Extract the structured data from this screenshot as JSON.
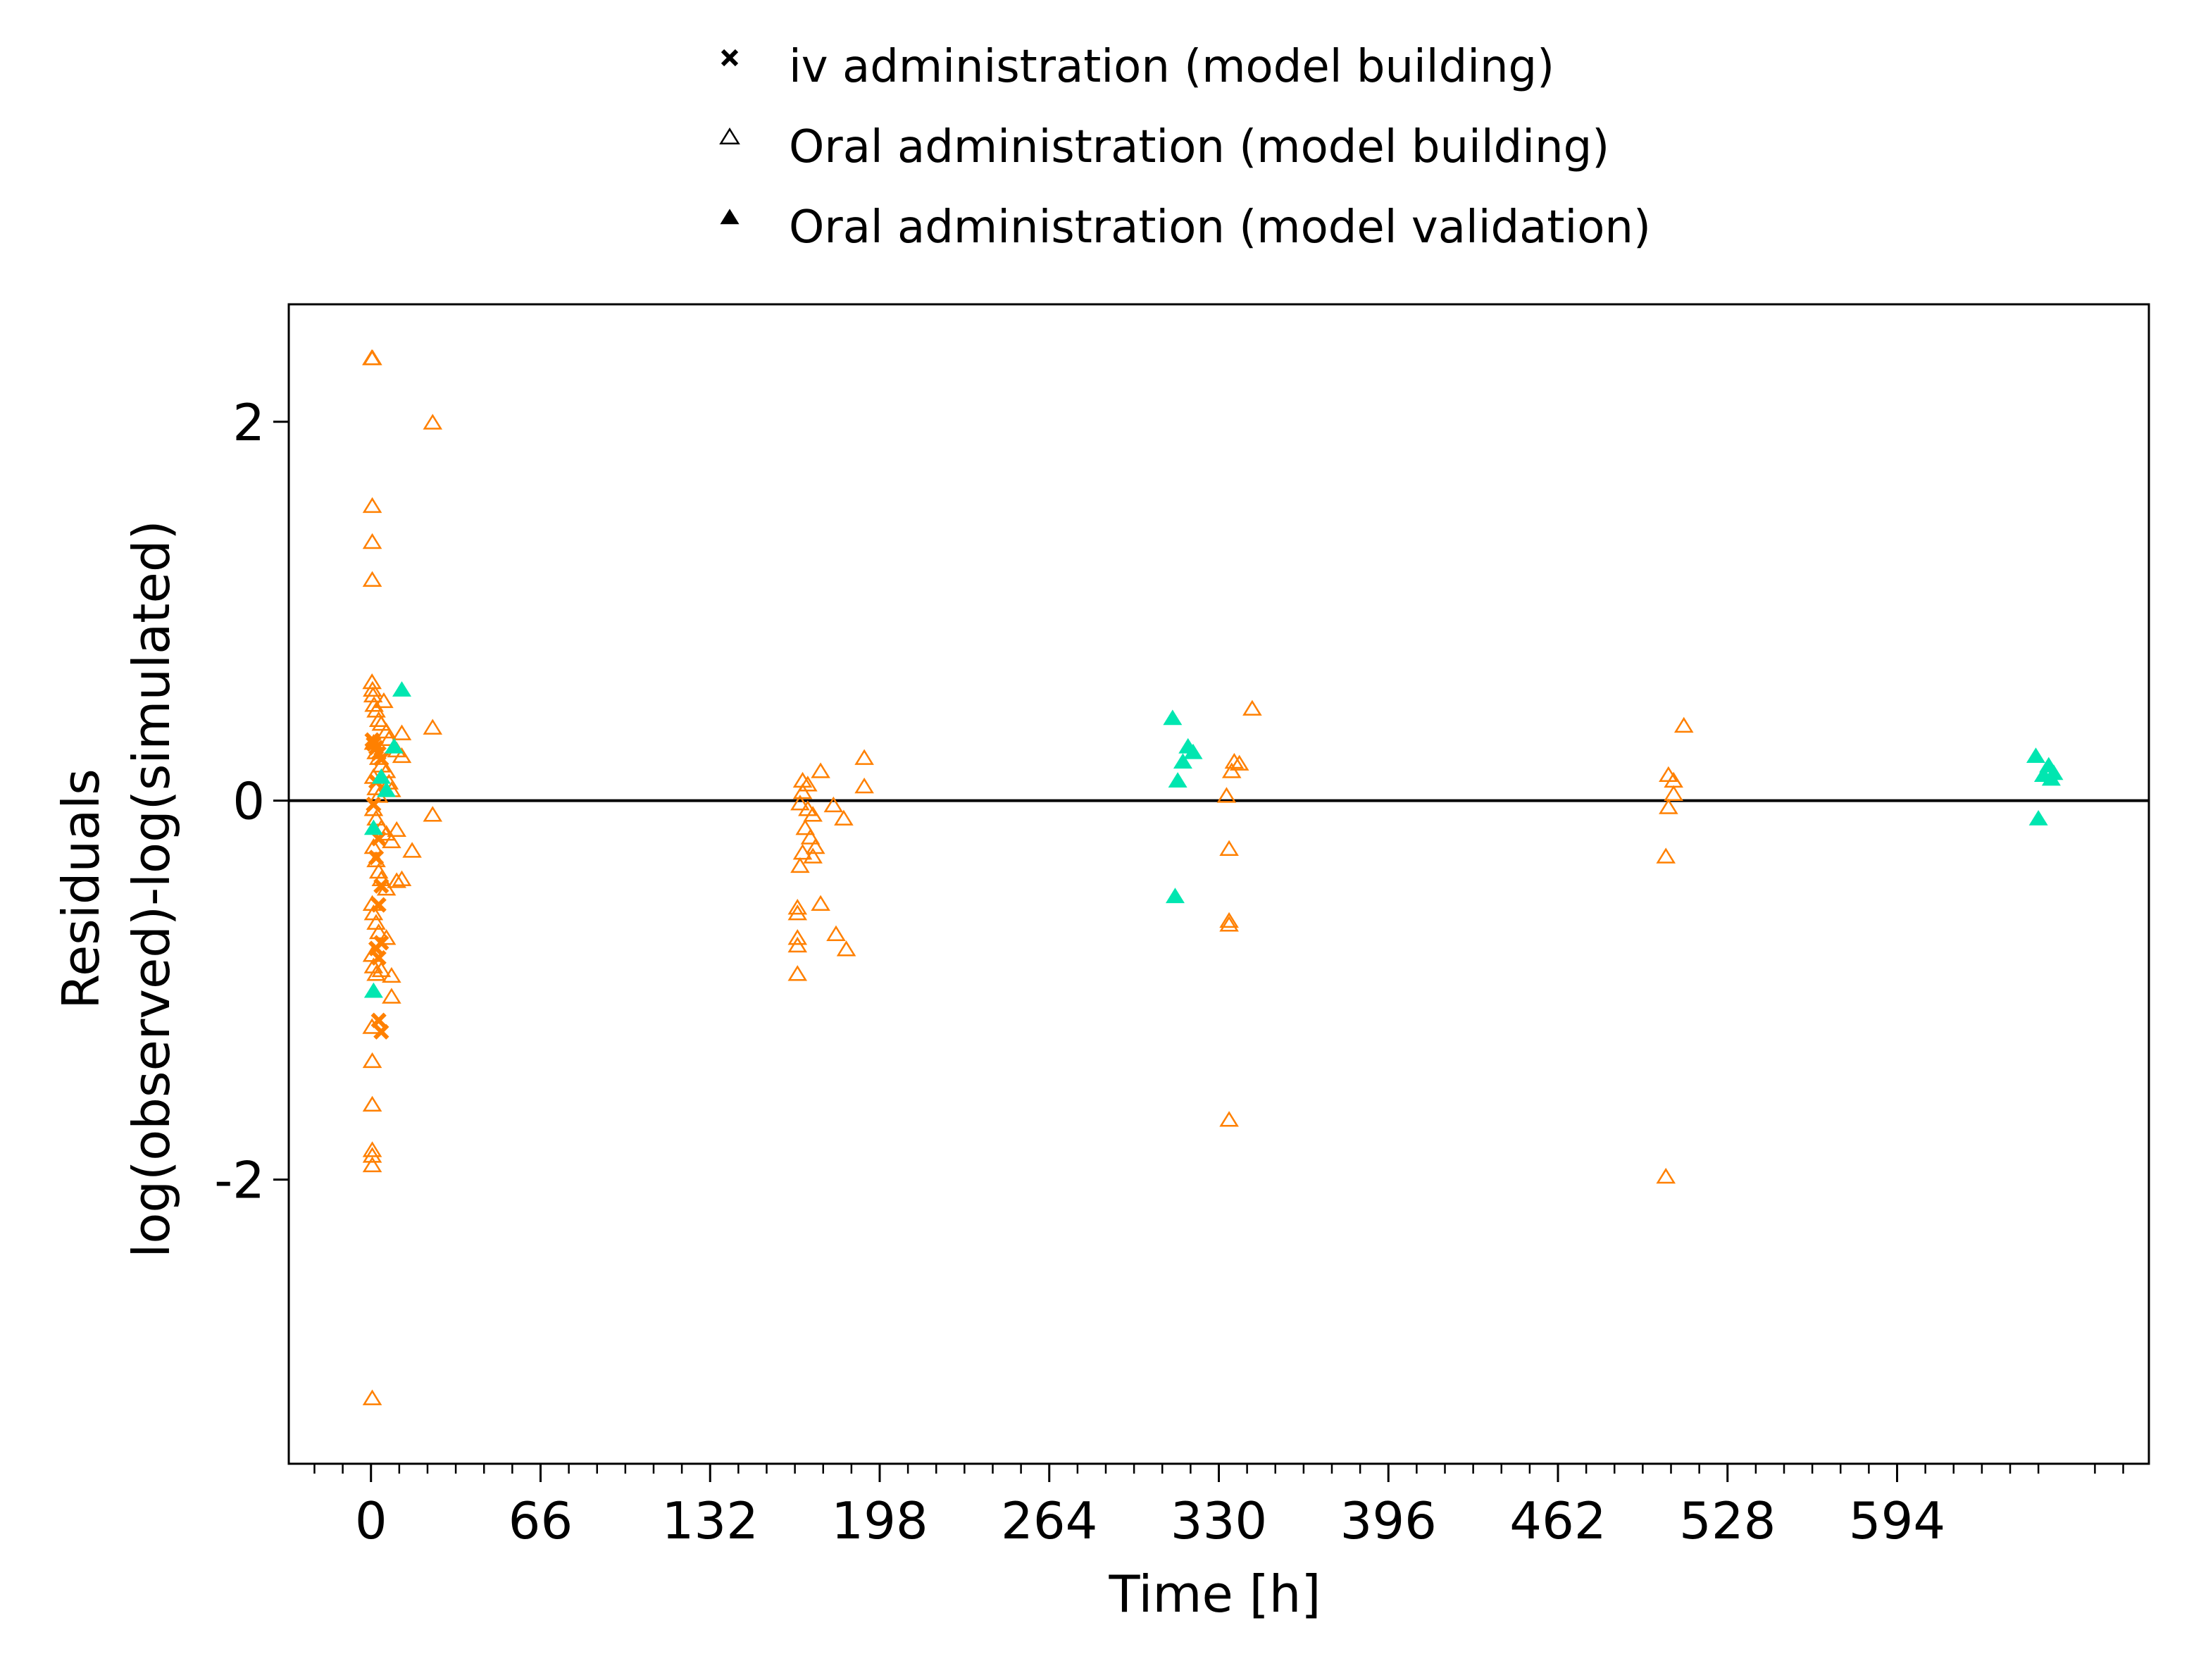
{
  "chart_data": {
    "type": "scatter",
    "xlabel": "Time [h]",
    "ylabel_line1": "Residuals",
    "ylabel_line2": "log(observed)-log(simulated)",
    "xlim": [
      -32,
      692
    ],
    "ylim": [
      -3.5,
      2.62
    ],
    "xticks": [
      0,
      66,
      132,
      198,
      264,
      330,
      396,
      462,
      528,
      594
    ],
    "xtick_labels": [
      "0",
      "66",
      "132",
      "198",
      "264",
      "330",
      "396",
      "462",
      "528",
      "594"
    ],
    "yticks": [
      2,
      0,
      -2
    ],
    "ytick_labels": [
      "2",
      "0",
      "-2"
    ],
    "reference_line": 0,
    "legend_position": "top",
    "colors": {
      "orange": "#ff8000",
      "teal": "#00e6b0",
      "axis": "#000000"
    },
    "legend": [
      {
        "label": "iv administration (model building)",
        "marker": "x"
      },
      {
        "label": "Oral administration (model building)",
        "marker": "triangle-open"
      },
      {
        "label": "Oral administration (model validation)",
        "marker": "triangle-filled"
      }
    ],
    "series": [
      {
        "marker": "triangle-open",
        "color": "#ff8000",
        "points": [
          [
            0.3,
            2.33
          ],
          [
            0.6,
            2.33
          ],
          [
            24,
            1.99
          ],
          [
            0.5,
            1.55
          ],
          [
            0.5,
            1.36
          ],
          [
            0.5,
            1.16
          ],
          [
            0.4,
            0.62
          ],
          [
            0.6,
            0.58
          ],
          [
            0.8,
            0.55
          ],
          [
            1.2,
            0.5
          ],
          [
            2,
            0.47
          ],
          [
            3,
            0.42
          ],
          [
            4,
            0.4
          ],
          [
            5,
            0.52
          ],
          [
            6,
            0.36
          ],
          [
            7,
            0.32
          ],
          [
            12,
            0.35
          ],
          [
            24,
            0.38
          ],
          [
            12,
            0.23
          ],
          [
            10,
            0.26
          ],
          [
            1,
            0.3
          ],
          [
            2,
            0.25
          ],
          [
            3,
            0.22
          ],
          [
            4,
            0.18
          ],
          [
            6,
            0.15
          ],
          [
            7,
            0.09
          ],
          [
            8,
            0.05
          ],
          [
            1,
            0.12
          ],
          [
            2,
            0.06
          ],
          [
            3,
            0.02
          ],
          [
            1,
            -0.05
          ],
          [
            2,
            -0.1
          ],
          [
            4,
            -0.15
          ],
          [
            6,
            -0.18
          ],
          [
            8,
            -0.22
          ],
          [
            10,
            -0.16
          ],
          [
            16,
            -0.27
          ],
          [
            24,
            -0.08
          ],
          [
            1,
            -0.25
          ],
          [
            2,
            -0.32
          ],
          [
            3,
            -0.38
          ],
          [
            4,
            -0.42
          ],
          [
            6,
            -0.47
          ],
          [
            10,
            -0.43
          ],
          [
            12,
            -0.42
          ],
          [
            0.5,
            -0.55
          ],
          [
            1,
            -0.6
          ],
          [
            2,
            -0.65
          ],
          [
            3,
            -0.7
          ],
          [
            6,
            -0.73
          ],
          [
            0.5,
            -0.82
          ],
          [
            1,
            -0.88
          ],
          [
            2,
            -0.92
          ],
          [
            4,
            -0.9
          ],
          [
            8,
            -0.93
          ],
          [
            8,
            -1.04
          ],
          [
            0.4,
            -1.2
          ],
          [
            0.5,
            -1.38
          ],
          [
            0.5,
            -1.61
          ],
          [
            0.5,
            -1.85
          ],
          [
            0.5,
            -1.93
          ],
          [
            0.5,
            -1.88
          ],
          [
            0.5,
            -3.16
          ],
          [
            168,
            0.1
          ],
          [
            170,
            0.08
          ],
          [
            168,
            0.04
          ],
          [
            167,
            -0.02
          ],
          [
            170,
            -0.05
          ],
          [
            172,
            -0.08
          ],
          [
            169,
            -0.15
          ],
          [
            171,
            -0.2
          ],
          [
            173,
            -0.25
          ],
          [
            168,
            -0.28
          ],
          [
            167,
            -0.35
          ],
          [
            172,
            -0.3
          ],
          [
            175,
            0.15
          ],
          [
            180,
            -0.03
          ],
          [
            184,
            -0.1
          ],
          [
            192,
            0.22
          ],
          [
            192,
            0.07
          ],
          [
            166,
            -0.57
          ],
          [
            166,
            -0.6
          ],
          [
            166,
            -0.73
          ],
          [
            166,
            -0.77
          ],
          [
            175,
            -0.55
          ],
          [
            181,
            -0.71
          ],
          [
            185,
            -0.79
          ],
          [
            166,
            -0.92
          ],
          [
            333,
            0.02
          ],
          [
            336,
            0.2
          ],
          [
            338,
            0.19
          ],
          [
            335,
            0.15
          ],
          [
            343,
            0.48
          ],
          [
            334,
            -0.26
          ],
          [
            334,
            -0.64
          ],
          [
            334,
            -0.66
          ],
          [
            334,
            -1.69
          ],
          [
            505,
            0.13
          ],
          [
            507,
            0.1
          ],
          [
            507,
            0.03
          ],
          [
            505,
            -0.04
          ],
          [
            511,
            0.39
          ],
          [
            504,
            -0.3
          ],
          [
            504,
            -1.99
          ]
        ]
      },
      {
        "marker": "x",
        "color": "#ff8000",
        "points": [
          [
            0.5,
            0.32
          ],
          [
            1,
            0.3
          ],
          [
            2,
            0.28
          ],
          [
            3,
            0.25
          ],
          [
            4,
            0.22
          ],
          [
            2,
            0.1
          ],
          [
            1,
            -0.02
          ],
          [
            3,
            -0.2
          ],
          [
            2,
            -0.3
          ],
          [
            4,
            -0.45
          ],
          [
            3,
            -0.55
          ],
          [
            2,
            -0.78
          ],
          [
            3,
            -0.83
          ],
          [
            4,
            -0.75
          ],
          [
            3,
            -1.16
          ],
          [
            4,
            -1.22
          ]
        ]
      },
      {
        "marker": "triangle-filled",
        "color": "#00e6b0",
        "points": [
          [
            12,
            0.58
          ],
          [
            9,
            0.28
          ],
          [
            4,
            0.12
          ],
          [
            6,
            0.05
          ],
          [
            1,
            -0.15
          ],
          [
            1,
            -1.01
          ],
          [
            312,
            0.43
          ],
          [
            318,
            0.28
          ],
          [
            320,
            0.25
          ],
          [
            316,
            0.2
          ],
          [
            314,
            0.1
          ],
          [
            313,
            -0.51
          ],
          [
            648,
            0.23
          ],
          [
            653,
            0.18
          ],
          [
            655,
            0.14
          ],
          [
            651,
            0.13
          ],
          [
            654,
            0.11
          ],
          [
            649,
            -0.1
          ]
        ]
      }
    ]
  }
}
